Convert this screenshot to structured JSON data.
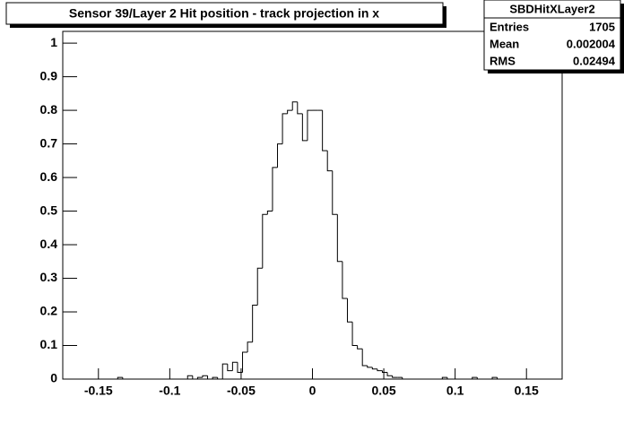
{
  "chart_data": {
    "type": "histogram",
    "title": "Sensor 39/Layer 2 Hit position - track projection in x",
    "stats": {
      "name": "SBDHitXLayer2",
      "rows": [
        [
          "Entries",
          "1705"
        ],
        [
          "Mean",
          "0.002004"
        ],
        [
          "RMS",
          "0.02494"
        ]
      ]
    },
    "bins": [
      -0.175,
      -0.1715,
      -0.168,
      -0.1645,
      -0.161,
      -0.1575,
      -0.154,
      -0.1505,
      -0.147,
      -0.1435,
      -0.14,
      -0.1365,
      -0.133,
      -0.1295,
      -0.126,
      -0.1225,
      -0.119,
      -0.1155,
      -0.112,
      -0.1085,
      -0.105,
      -0.1015,
      -0.098,
      -0.0945,
      -0.091,
      -0.0875,
      -0.084,
      -0.0805,
      -0.077,
      -0.0735,
      -0.07,
      -0.0665,
      -0.063,
      -0.0595,
      -0.056,
      -0.0525,
      -0.049,
      -0.0455,
      -0.042,
      -0.0385,
      -0.035,
      -0.0315,
      -0.028,
      -0.0245,
      -0.021,
      -0.0175,
      -0.014,
      -0.0105,
      -0.007,
      -0.0035,
      0,
      0.0035,
      0.007,
      0.0105,
      0.014,
      0.0175,
      0.021,
      0.0245,
      0.028,
      0.0315,
      0.035,
      0.0385,
      0.042,
      0.0455,
      0.049,
      0.0525,
      0.056,
      0.0595,
      0.063,
      0.0665,
      0.07,
      0.0735,
      0.077,
      0.0805,
      0.084,
      0.0875,
      0.091,
      0.0945,
      0.098,
      0.1015,
      0.105,
      0.1085,
      0.112,
      0.1155,
      0.119,
      0.1225,
      0.126,
      0.1295,
      0.133,
      0.1365,
      0.14,
      0.1435,
      0.147,
      0.1505,
      0.154,
      0.1575,
      0.161,
      0.1645,
      0.168,
      0.1715,
      0.175
    ],
    "values": [
      0,
      0,
      0,
      0,
      0,
      0,
      0,
      0,
      0,
      0,
      0,
      0.005,
      0,
      0,
      0,
      0,
      0,
      0,
      0,
      0,
      0,
      0,
      0,
      0,
      0,
      0.01,
      0,
      0.005,
      0.01,
      0,
      0.005,
      0,
      0.045,
      0.025,
      0.05,
      0.02,
      0.08,
      0.11,
      0.22,
      0.33,
      0.49,
      0.5,
      0.63,
      0.7,
      0.79,
      0.8,
      0.825,
      0.79,
      0.71,
      0.8,
      0.8,
      0.8,
      0.68,
      0.62,
      0.49,
      0.35,
      0.24,
      0.17,
      0.1,
      0.09,
      0.04,
      0.035,
      0.03,
      0.025,
      0.02,
      0.01,
      0.005,
      0.005,
      0,
      0,
      0,
      0,
      0,
      0,
      0,
      0,
      0.005,
      0,
      0,
      0,
      0,
      0,
      0.005,
      0,
      0,
      0,
      0.005,
      0,
      0,
      0,
      0,
      0,
      0,
      0,
      0,
      0,
      0,
      0,
      0,
      0
    ],
    "color": "#000000",
    "xlim": [
      -0.175,
      0.175
    ],
    "xticks": [
      -0.15,
      -0.1,
      -0.05,
      0,
      0.05,
      0.1,
      0.15
    ],
    "ylim": [
      0,
      1.035
    ],
    "yticks": [
      0,
      0.1,
      0.2,
      0.3,
      0.4,
      0.5,
      0.6,
      0.7,
      0.8,
      0.9,
      1
    ]
  }
}
